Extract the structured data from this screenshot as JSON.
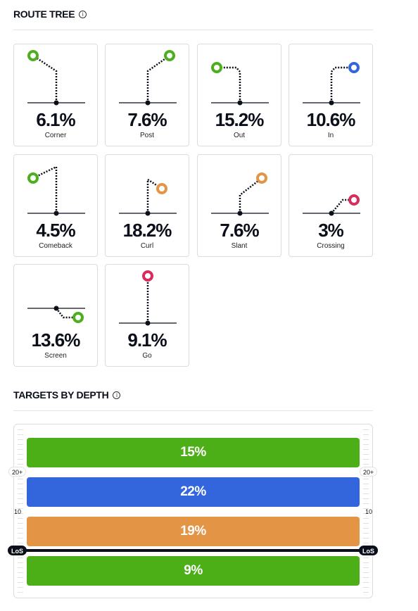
{
  "route_tree": {
    "title": "ROUTE TREE",
    "routes": [
      {
        "name": "Corner",
        "pct": "6.1%",
        "share": 6.1,
        "color": "#4caf1e"
      },
      {
        "name": "Post",
        "pct": "7.6%",
        "share": 7.6,
        "color": "#4caf1e"
      },
      {
        "name": "Out",
        "pct": "15.2%",
        "share": 15.2,
        "color": "#4caf1e"
      },
      {
        "name": "In",
        "pct": "10.6%",
        "share": 10.6,
        "color": "#3366dd"
      },
      {
        "name": "Comeback",
        "pct": "4.5%",
        "share": 4.5,
        "color": "#4caf1e"
      },
      {
        "name": "Curl",
        "pct": "18.2%",
        "share": 18.2,
        "color": "#e39545"
      },
      {
        "name": "Slant",
        "pct": "7.6%",
        "share": 7.6,
        "color": "#e39545"
      },
      {
        "name": "Crossing",
        "pct": "3%",
        "share": 3,
        "color": "#d62d5a"
      },
      {
        "name": "Screen",
        "pct": "13.6%",
        "share": 13.6,
        "color": "#4caf1e"
      },
      {
        "name": "Go",
        "pct": "9.1%",
        "share": 9.1,
        "color": "#d62d5a"
      }
    ]
  },
  "targets_by_depth": {
    "title": "TARGETS BY DEPTH",
    "bars": [
      {
        "label": "15%",
        "share": 15,
        "color": "#4caf18"
      },
      {
        "label": "22%",
        "share": 22,
        "color": "#3366dd"
      },
      {
        "label": "19%",
        "share": 19,
        "color": "#e39545"
      },
      {
        "label": "9%",
        "share": 9,
        "color": "#4caf18"
      }
    ],
    "markers": {
      "deep": "20+",
      "mid": "10",
      "los": "LoS"
    }
  },
  "colors": {
    "text": "#0b0f1a",
    "green": "#4caf1e",
    "blue": "#3366dd",
    "orange": "#e39545",
    "red": "#d62d5a"
  },
  "icons": {
    "info": "info-icon"
  }
}
